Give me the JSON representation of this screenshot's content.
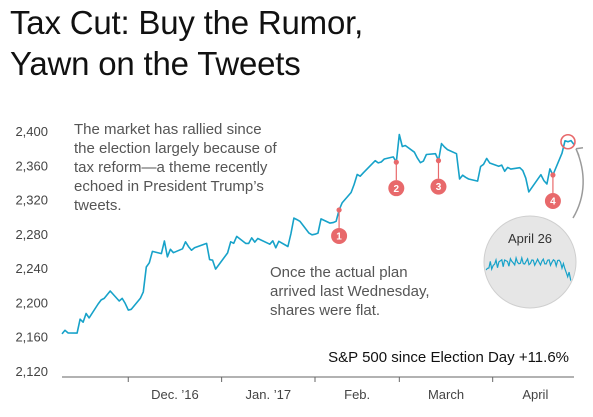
{
  "title_lines": [
    "Tax Cut: Buy the Rumor,",
    "Yawn on the Tweets"
  ],
  "annotations": {
    "tweets_text": [
      "The market has rallied since",
      "the election largely because of",
      "tax reform—a theme recently",
      "echoed in President Trump’s",
      "tweets."
    ],
    "plan_text": [
      "Once the actual plan",
      "arrived last Wednesday,",
      "shares were flat."
    ],
    "caption": "S&P 500 since Election Day +11.6%",
    "inset_label": "April 26"
  },
  "chart_data": {
    "type": "line",
    "series": [
      {
        "name": "S&P 500",
        "x": [
          "2016-11-09",
          "2016-11-10",
          "2016-11-11",
          "2016-11-14",
          "2016-11-15",
          "2016-11-16",
          "2016-11-17",
          "2016-11-18",
          "2016-11-21",
          "2016-11-22",
          "2016-11-23",
          "2016-11-25",
          "2016-11-28",
          "2016-11-29",
          "2016-11-30",
          "2016-12-01",
          "2016-12-02",
          "2016-12-05",
          "2016-12-06",
          "2016-12-07",
          "2016-12-08",
          "2016-12-09",
          "2016-12-12",
          "2016-12-13",
          "2016-12-14",
          "2016-12-15",
          "2016-12-16",
          "2016-12-19",
          "2016-12-20",
          "2016-12-21",
          "2016-12-22",
          "2016-12-23",
          "2016-12-27",
          "2016-12-28",
          "2016-12-29",
          "2016-12-30",
          "2017-01-03",
          "2017-01-04",
          "2017-01-05",
          "2017-01-06",
          "2017-01-09",
          "2017-01-10",
          "2017-01-11",
          "2017-01-12",
          "2017-01-13",
          "2017-01-17",
          "2017-01-18",
          "2017-01-19",
          "2017-01-20",
          "2017-01-23",
          "2017-01-24",
          "2017-01-25",
          "2017-01-26",
          "2017-01-27",
          "2017-01-30",
          "2017-01-31",
          "2017-02-01",
          "2017-02-02",
          "2017-02-03",
          "2017-02-06",
          "2017-02-07",
          "2017-02-08",
          "2017-02-09",
          "2017-02-10",
          "2017-02-13",
          "2017-02-14",
          "2017-02-15",
          "2017-02-16",
          "2017-02-17",
          "2017-02-21",
          "2017-02-22",
          "2017-02-23",
          "2017-02-24",
          "2017-02-27",
          "2017-02-28",
          "2017-03-01",
          "2017-03-02",
          "2017-03-03",
          "2017-03-06",
          "2017-03-07",
          "2017-03-08",
          "2017-03-09",
          "2017-03-10",
          "2017-03-13",
          "2017-03-14",
          "2017-03-15",
          "2017-03-16",
          "2017-03-17",
          "2017-03-20",
          "2017-03-21",
          "2017-03-22",
          "2017-03-23",
          "2017-03-24",
          "2017-03-27",
          "2017-03-28",
          "2017-03-29",
          "2017-03-30",
          "2017-03-31",
          "2017-04-03",
          "2017-04-04",
          "2017-04-05",
          "2017-04-06",
          "2017-04-07",
          "2017-04-10",
          "2017-04-11",
          "2017-04-12",
          "2017-04-13",
          "2017-04-17",
          "2017-04-18",
          "2017-04-19",
          "2017-04-20",
          "2017-04-21",
          "2017-04-24",
          "2017-04-25",
          "2017-04-26",
          "2017-04-27",
          "2017-04-28"
        ],
        "values": [
          2163.26,
          2167.48,
          2164.45,
          2164.2,
          2180.39,
          2176.94,
          2187.12,
          2181.9,
          2198.18,
          2202.94,
          2204.72,
          2213.35,
          2201.72,
          2204.66,
          2198.81,
          2191.08,
          2191.95,
          2204.71,
          2212.23,
          2241.35,
          2246.19,
          2259.53,
          2256.96,
          2271.72,
          2253.28,
          2262.03,
          2258.07,
          2262.53,
          2270.76,
          2265.18,
          2260.96,
          2263.79,
          2268.88,
          2249.92,
          2249.26,
          2238.83,
          2257.83,
          2270.75,
          2269.0,
          2276.98,
          2268.9,
          2268.9,
          2275.32,
          2270.44,
          2274.64,
          2267.89,
          2271.89,
          2263.69,
          2271.31,
          2265.2,
          2280.07,
          2298.37,
          2296.68,
          2294.69,
          2280.9,
          2278.87,
          2279.55,
          2280.85,
          2297.42,
          2292.56,
          2293.08,
          2294.67,
          2307.87,
          2316.1,
          2328.25,
          2337.58,
          2349.25,
          2347.22,
          2351.16,
          2365.38,
          2362.82,
          2363.81,
          2367.34,
          2369.75,
          2363.64,
          2395.96,
          2381.92,
          2383.12,
          2375.31,
          2368.39,
          2362.98,
          2364.87,
          2372.6,
          2373.47,
          2365.45,
          2385.26,
          2381.38,
          2378.25,
          2373.47,
          2344.02,
          2348.45,
          2345.96,
          2343.98,
          2341.59,
          2358.57,
          2361.13,
          2368.06,
          2362.72,
          2358.84,
          2360.16,
          2352.95,
          2357.49,
          2355.54,
          2357.16,
          2353.78,
          2344.93,
          2328.95,
          2349.01,
          2342.19,
          2338.17,
          2355.84,
          2348.69,
          2374.15,
          2388.61,
          2387.45,
          2388.77,
          2384.2
        ]
      }
    ],
    "x_tick_labels": [
      "Dec. ’16",
      "Jan. ’17",
      "Feb.",
      "March",
      "April"
    ],
    "x_tick_dates": [
      "2016-12-01",
      "2017-01-01",
      "2017-02-01",
      "2017-03-01",
      "2017-04-01"
    ],
    "y_ticks": [
      2120,
      2160,
      2200,
      2240,
      2280,
      2320,
      2360,
      2400
    ],
    "y_tick_labels": [
      "2,120",
      "2,160",
      "2,200",
      "2,240",
      "2,280",
      "2,320",
      "2,360",
      "2,400"
    ],
    "ylim": [
      2120,
      2400
    ],
    "grid": false,
    "markers": [
      {
        "label": "1",
        "date": "2017-02-09",
        "value": 2307.87
      },
      {
        "label": "2",
        "date": "2017-02-28",
        "value": 2363.64
      },
      {
        "label": "3",
        "date": "2017-03-14",
        "value": 2365.45
      },
      {
        "label": "4",
        "date": "2017-04-21",
        "value": 2348.69
      }
    ],
    "highlight_date": "2017-04-26",
    "colors": {
      "line": "#17a2c9",
      "marker": "#e8696b",
      "axis": "#666666",
      "inset_bg": "#e6e6e6"
    }
  }
}
